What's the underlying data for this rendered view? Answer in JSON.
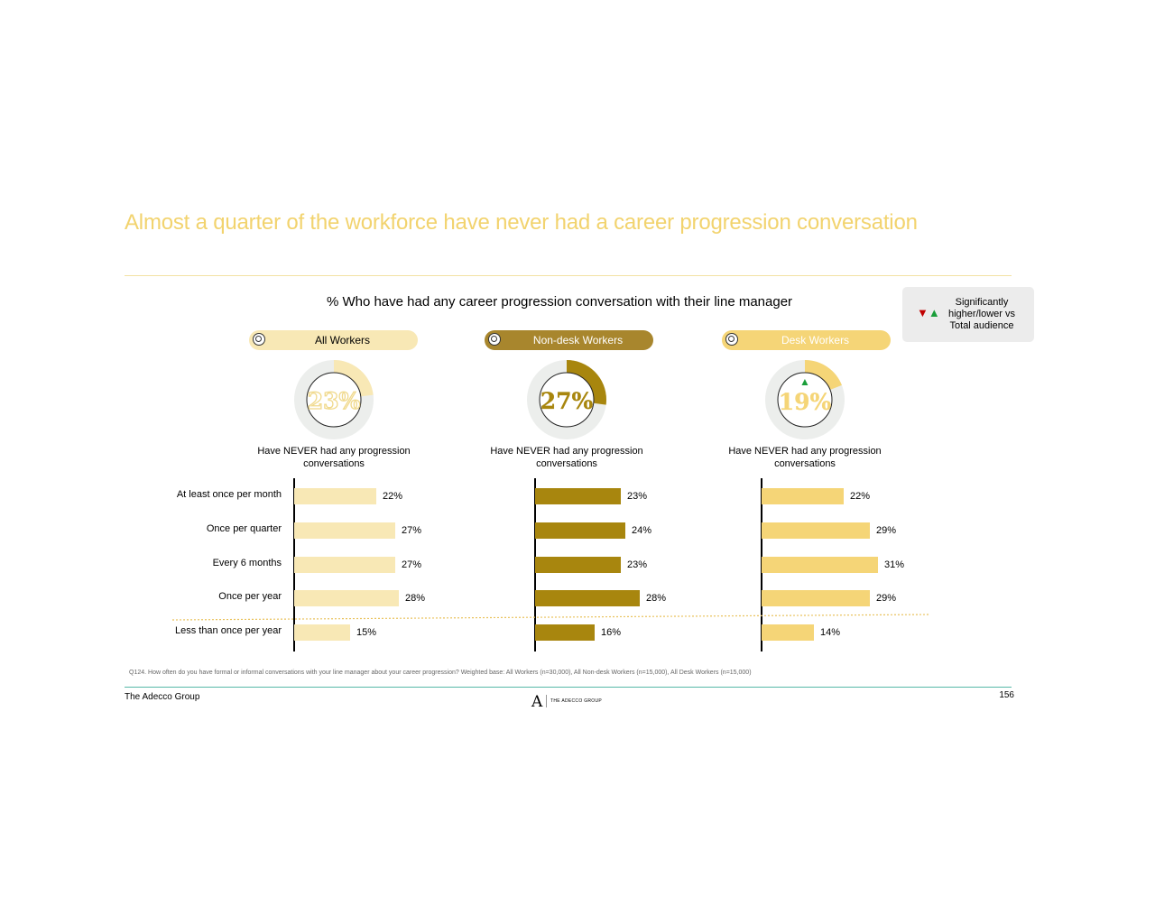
{
  "title": "Almost a quarter of the workforce have never had a career progression conversation",
  "chart_data": {
    "type": "bar",
    "title": "% Who have had any career progression conversation with their line manager",
    "legend": {
      "symbols": "▼▲",
      "text": "Significantly higher/lower vs Total audience"
    },
    "categories": [
      "At least once per month",
      "Once per quarter",
      "Every 6 months",
      "Once per year",
      "Less than once per year"
    ],
    "series": [
      {
        "name": "All Workers",
        "never_pct": 23,
        "never_label": "23%",
        "values": [
          22,
          27,
          27,
          28,
          15
        ],
        "labels": [
          "22%",
          "27%",
          "27%",
          "28%",
          "15%"
        ],
        "significance_marker": "",
        "color": "#f8e8b5",
        "pill_color": "#f8e8b5",
        "pill_text_color": "#000000"
      },
      {
        "name": "Non-desk Workers",
        "never_pct": 27,
        "never_label": "27%",
        "values": [
          23,
          24,
          23,
          28,
          16
        ],
        "labels": [
          "23%",
          "24%",
          "23%",
          "28%",
          "16%"
        ],
        "significance_marker": "",
        "color": "#a8860e",
        "pill_color": "#a8862d",
        "pill_text_color": "#ffffff"
      },
      {
        "name": "Desk Workers",
        "never_pct": 19,
        "never_label": "19%",
        "values": [
          22,
          29,
          31,
          29,
          14
        ],
        "labels": [
          "22%",
          "29%",
          "31%",
          "29%",
          "14%"
        ],
        "significance_marker": "▲",
        "color": "#f5d577",
        "pill_color": "#f5d577",
        "pill_text_color": "#ffffff"
      }
    ],
    "donut_caption": "Have NEVER had any progression conversations",
    "xlim": [
      0,
      31
    ]
  },
  "colors": {
    "title": "#f2d36e",
    "donut_track": "#eceeec",
    "up": "#1a9e3a",
    "down": "#c00000"
  },
  "footnote": "Q124. How often do you have formal or informal conversations with your line manager about your career progression? Weighted base: All Workers (n=30,000), All Non-desk Workers (n=15,000), All Desk Workers (n=15,000)",
  "footer": {
    "company": "The Adecco Group",
    "page": "156",
    "logo_mark": "A",
    "logo_text": "THE ADECCO GROUP"
  }
}
